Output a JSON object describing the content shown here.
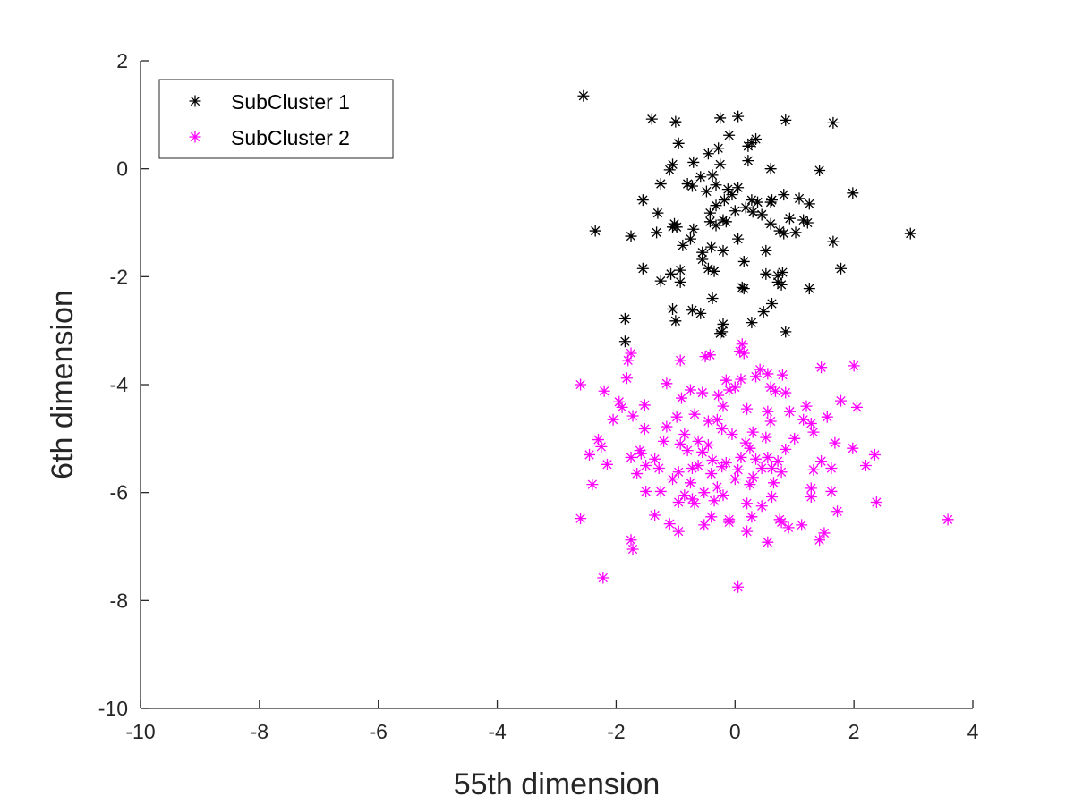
{
  "chart_data": {
    "type": "scatter",
    "title": "",
    "xlabel": "55th dimension",
    "ylabel": "6th dimension",
    "xlim": [
      -10,
      4
    ],
    "ylim": [
      -10,
      2
    ],
    "xticks": [
      "-10",
      "-8",
      "-6",
      "-4",
      "-2",
      "0",
      "2",
      "4"
    ],
    "yticks": [
      "2",
      "0",
      "-2",
      "-4",
      "-6",
      "-8",
      "-10"
    ],
    "grid": false,
    "legend_position": "top-left",
    "marker": "asterisk",
    "series": [
      {
        "name": "SubCluster 1",
        "color": "#000000",
        "points": [
          [
            -2.55,
            1.35
          ],
          [
            -1.4,
            0.92
          ],
          [
            -1.0,
            0.87
          ],
          [
            -0.25,
            0.94
          ],
          [
            0.05,
            0.97
          ],
          [
            0.85,
            0.9
          ],
          [
            1.65,
            0.85
          ],
          [
            -0.1,
            0.62
          ],
          [
            0.35,
            0.55
          ],
          [
            0.28,
            0.48
          ],
          [
            0.22,
            0.42
          ],
          [
            -0.95,
            0.47
          ],
          [
            -0.45,
            0.28
          ],
          [
            -0.28,
            0.38
          ],
          [
            0.22,
            0.15
          ],
          [
            -0.7,
            0.12
          ],
          [
            -0.25,
            0.08
          ],
          [
            -1.05,
            0.08
          ],
          [
            -1.1,
            -0.02
          ],
          [
            0.6,
            0.0
          ],
          [
            1.42,
            -0.03
          ],
          [
            -0.38,
            -0.12
          ],
          [
            -0.58,
            -0.15
          ],
          [
            -0.8,
            -0.28
          ],
          [
            -0.72,
            -0.32
          ],
          [
            -0.32,
            -0.3
          ],
          [
            -1.25,
            -0.28
          ],
          [
            0.05,
            -0.35
          ],
          [
            -0.12,
            -0.38
          ],
          [
            -0.48,
            -0.42
          ],
          [
            -0.05,
            -0.48
          ],
          [
            0.82,
            -0.48
          ],
          [
            1.98,
            -0.45
          ],
          [
            -1.55,
            -0.58
          ],
          [
            -0.18,
            -0.58
          ],
          [
            0.28,
            -0.58
          ],
          [
            0.38,
            -0.62
          ],
          [
            0.62,
            -0.58
          ],
          [
            1.08,
            -0.55
          ],
          [
            1.25,
            -0.65
          ],
          [
            0.6,
            -0.62
          ],
          [
            -0.32,
            -0.68
          ],
          [
            0.18,
            -0.72
          ],
          [
            0.0,
            -0.78
          ],
          [
            -0.42,
            -0.82
          ],
          [
            0.45,
            -0.85
          ],
          [
            0.3,
            -0.8
          ],
          [
            -1.3,
            -0.82
          ],
          [
            -0.2,
            -0.95
          ],
          [
            -0.15,
            -0.98
          ],
          [
            0.92,
            -0.92
          ],
          [
            1.15,
            -0.95
          ],
          [
            1.22,
            -1.0
          ],
          [
            -0.42,
            -0.98
          ],
          [
            0.6,
            -1.02
          ],
          [
            -0.32,
            -1.05
          ],
          [
            -1.02,
            -1.02
          ],
          [
            -1.05,
            -1.08
          ],
          [
            -0.7,
            -1.12
          ],
          [
            -2.35,
            -1.15
          ],
          [
            -0.98,
            -1.08
          ],
          [
            -1.32,
            -1.18
          ],
          [
            0.75,
            -1.15
          ],
          [
            0.82,
            -1.2
          ],
          [
            1.02,
            -1.18
          ],
          [
            2.95,
            -1.2
          ],
          [
            -1.75,
            -1.25
          ],
          [
            -0.75,
            -1.3
          ],
          [
            0.05,
            -1.3
          ],
          [
            1.65,
            -1.35
          ],
          [
            -0.4,
            -1.45
          ],
          [
            -0.88,
            -1.42
          ],
          [
            -0.2,
            -1.52
          ],
          [
            0.52,
            -1.52
          ],
          [
            -0.55,
            -1.55
          ],
          [
            -0.55,
            -1.68
          ],
          [
            0.15,
            -1.72
          ],
          [
            -0.45,
            -1.85
          ],
          [
            -0.35,
            -1.9
          ],
          [
            0.8,
            -1.92
          ],
          [
            0.72,
            -1.98
          ],
          [
            1.78,
            -1.85
          ],
          [
            -1.55,
            -1.85
          ],
          [
            -0.92,
            -1.88
          ],
          [
            -1.08,
            -1.95
          ],
          [
            0.52,
            -1.95
          ],
          [
            -1.25,
            -2.08
          ],
          [
            -0.92,
            -2.1
          ],
          [
            0.78,
            -2.15
          ],
          [
            0.72,
            -2.1
          ],
          [
            0.12,
            -2.2
          ],
          [
            0.15,
            -2.22
          ],
          [
            1.25,
            -2.22
          ],
          [
            -0.38,
            -2.4
          ],
          [
            0.62,
            -2.5
          ],
          [
            -1.05,
            -2.6
          ],
          [
            -0.72,
            -2.62
          ],
          [
            -0.58,
            -2.68
          ],
          [
            0.48,
            -2.65
          ],
          [
            -1.85,
            -2.78
          ],
          [
            -1.0,
            -2.82
          ],
          [
            -0.2,
            -2.88
          ],
          [
            0.28,
            -2.85
          ],
          [
            0.85,
            -3.02
          ],
          [
            -0.22,
            -3.02
          ],
          [
            -0.25,
            -3.05
          ],
          [
            -1.85,
            -3.2
          ]
        ]
      },
      {
        "name": "SubCluster 2",
        "color": "#ff00ff",
        "points": [
          [
            0.12,
            -3.25
          ],
          [
            0.08,
            -3.38
          ],
          [
            0.15,
            -3.42
          ],
          [
            -1.75,
            -3.42
          ],
          [
            -1.8,
            -3.55
          ],
          [
            -0.92,
            -3.55
          ],
          [
            -0.5,
            -3.48
          ],
          [
            -0.42,
            -3.45
          ],
          [
            0.42,
            -3.72
          ],
          [
            0.55,
            -3.8
          ],
          [
            0.8,
            -3.82
          ],
          [
            1.45,
            -3.68
          ],
          [
            2.0,
            -3.65
          ],
          [
            -1.82,
            -3.88
          ],
          [
            -0.15,
            -3.92
          ],
          [
            0.1,
            -3.9
          ],
          [
            0.35,
            -3.85
          ],
          [
            0.6,
            -4.05
          ],
          [
            0.68,
            -4.12
          ],
          [
            0.85,
            -4.15
          ],
          [
            -2.6,
            -4.0
          ],
          [
            -1.15,
            -3.98
          ],
          [
            -0.75,
            -4.1
          ],
          [
            -0.55,
            -4.15
          ],
          [
            -0.28,
            -4.2
          ],
          [
            0.0,
            -4.05
          ],
          [
            -0.1,
            -4.1
          ],
          [
            1.78,
            -4.3
          ],
          [
            2.05,
            -4.42
          ],
          [
            -2.2,
            -4.12
          ],
          [
            -1.95,
            -4.32
          ],
          [
            -1.9,
            -4.42
          ],
          [
            -1.52,
            -4.38
          ],
          [
            -0.9,
            -4.25
          ],
          [
            -0.2,
            -4.4
          ],
          [
            0.2,
            -4.45
          ],
          [
            0.55,
            -4.5
          ],
          [
            0.92,
            -4.5
          ],
          [
            1.2,
            -4.4
          ],
          [
            1.55,
            -4.6
          ],
          [
            -1.72,
            -4.58
          ],
          [
            -0.98,
            -4.6
          ],
          [
            -0.68,
            -4.55
          ],
          [
            -0.45,
            -4.68
          ],
          [
            -0.3,
            -4.65
          ],
          [
            0.6,
            -4.68
          ],
          [
            1.15,
            -4.65
          ],
          [
            1.28,
            -4.72
          ],
          [
            0.3,
            -4.88
          ],
          [
            -2.05,
            -4.65
          ],
          [
            -1.52,
            -4.82
          ],
          [
            -0.22,
            -4.82
          ],
          [
            -0.05,
            -4.92
          ],
          [
            0.52,
            -4.98
          ],
          [
            1.0,
            -5.0
          ],
          [
            -1.15,
            -4.78
          ],
          [
            -0.85,
            -4.92
          ],
          [
            1.32,
            -4.88
          ],
          [
            -2.3,
            -5.02
          ],
          [
            -1.2,
            -5.05
          ],
          [
            -0.62,
            -5.05
          ],
          [
            -0.92,
            -5.1
          ],
          [
            0.18,
            -5.08
          ],
          [
            -1.6,
            -5.22
          ],
          [
            -1.58,
            -5.28
          ],
          [
            -0.45,
            -5.12
          ],
          [
            0.25,
            -5.18
          ],
          [
            1.68,
            -5.08
          ],
          [
            1.98,
            -5.18
          ],
          [
            -2.25,
            -5.15
          ],
          [
            -1.75,
            -5.35
          ],
          [
            -0.8,
            -5.22
          ],
          [
            -0.55,
            -5.25
          ],
          [
            0.55,
            -5.35
          ],
          [
            0.85,
            -5.2
          ],
          [
            2.35,
            -5.3
          ],
          [
            -2.45,
            -5.3
          ],
          [
            -1.35,
            -5.38
          ],
          [
            -0.38,
            -5.4
          ],
          [
            -0.15,
            -5.45
          ],
          [
            0.1,
            -5.35
          ],
          [
            0.35,
            -5.38
          ],
          [
            0.72,
            -5.42
          ],
          [
            1.45,
            -5.42
          ],
          [
            -1.5,
            -5.5
          ],
          [
            -1.28,
            -5.55
          ],
          [
            -0.72,
            -5.55
          ],
          [
            -0.62,
            -5.5
          ],
          [
            -0.22,
            -5.52
          ],
          [
            0.05,
            -5.58
          ],
          [
            0.45,
            -5.55
          ],
          [
            0.62,
            -5.55
          ],
          [
            2.2,
            -5.5
          ],
          [
            1.62,
            -5.55
          ],
          [
            -2.15,
            -5.48
          ],
          [
            -1.65,
            -5.65
          ],
          [
            -0.95,
            -5.62
          ],
          [
            -0.4,
            -5.65
          ],
          [
            0.0,
            -5.75
          ],
          [
            0.3,
            -5.72
          ],
          [
            0.78,
            -5.62
          ],
          [
            1.32,
            -5.58
          ],
          [
            -1.05,
            -5.75
          ],
          [
            -0.75,
            -5.82
          ],
          [
            -0.3,
            -5.9
          ],
          [
            0.25,
            -5.85
          ],
          [
            0.65,
            -5.82
          ],
          [
            1.28,
            -5.92
          ],
          [
            -2.4,
            -5.85
          ],
          [
            -1.5,
            -5.98
          ],
          [
            -1.25,
            -5.98
          ],
          [
            -0.85,
            -6.05
          ],
          [
            -0.52,
            -6.0
          ],
          [
            -0.2,
            -6.05
          ],
          [
            0.62,
            -6.08
          ],
          [
            1.28,
            -6.08
          ],
          [
            1.62,
            -5.98
          ],
          [
            -0.72,
            -6.12
          ],
          [
            -0.95,
            -6.18
          ],
          [
            -0.68,
            -6.2
          ],
          [
            -0.35,
            -6.15
          ],
          [
            0.2,
            -6.2
          ],
          [
            0.45,
            -6.25
          ],
          [
            1.72,
            -6.35
          ],
          [
            2.38,
            -6.18
          ],
          [
            -0.4,
            -6.45
          ],
          [
            -0.1,
            -6.5
          ],
          [
            0.28,
            -6.45
          ],
          [
            0.75,
            -6.5
          ],
          [
            0.78,
            -6.55
          ],
          [
            1.12,
            -6.6
          ],
          [
            -2.6,
            -6.48
          ],
          [
            3.58,
            -6.5
          ],
          [
            -1.35,
            -6.42
          ],
          [
            -1.1,
            -6.58
          ],
          [
            -0.52,
            -6.6
          ],
          [
            -0.1,
            -6.55
          ],
          [
            0.2,
            -6.72
          ],
          [
            0.9,
            -6.65
          ],
          [
            1.5,
            -6.75
          ],
          [
            1.42,
            -6.88
          ],
          [
            -1.75,
            -6.88
          ],
          [
            -1.72,
            -7.05
          ],
          [
            -0.95,
            -6.72
          ],
          [
            0.55,
            -6.92
          ],
          [
            -2.22,
            -7.58
          ],
          [
            0.05,
            -7.75
          ]
        ]
      }
    ]
  }
}
